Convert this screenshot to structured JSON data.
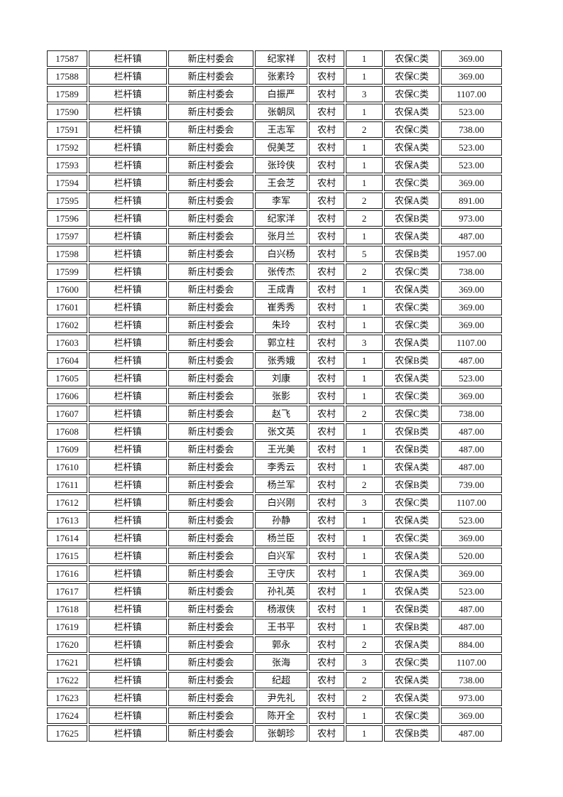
{
  "colors": {
    "background": "#ffffff",
    "text": "#121212",
    "border": "#1e1e1e"
  },
  "table": {
    "rows": [
      [
        "17587",
        "栏杆镇",
        "新庄村委会",
        "纪家祥",
        "农村",
        "1",
        "农保C类",
        "369.00"
      ],
      [
        "17588",
        "栏杆镇",
        "新庄村委会",
        "张素玲",
        "农村",
        "1",
        "农保C类",
        "369.00"
      ],
      [
        "17589",
        "栏杆镇",
        "新庄村委会",
        "白振严",
        "农村",
        "3",
        "农保C类",
        "1107.00"
      ],
      [
        "17590",
        "栏杆镇",
        "新庄村委会",
        "张朝凤",
        "农村",
        "1",
        "农保A类",
        "523.00"
      ],
      [
        "17591",
        "栏杆镇",
        "新庄村委会",
        "王志军",
        "农村",
        "2",
        "农保C类",
        "738.00"
      ],
      [
        "17592",
        "栏杆镇",
        "新庄村委会",
        "倪美芝",
        "农村",
        "1",
        "农保A类",
        "523.00"
      ],
      [
        "17593",
        "栏杆镇",
        "新庄村委会",
        "张玲侠",
        "农村",
        "1",
        "农保A类",
        "523.00"
      ],
      [
        "17594",
        "栏杆镇",
        "新庄村委会",
        "王会芝",
        "农村",
        "1",
        "农保C类",
        "369.00"
      ],
      [
        "17595",
        "栏杆镇",
        "新庄村委会",
        "李军",
        "农村",
        "2",
        "农保A类",
        "891.00"
      ],
      [
        "17596",
        "栏杆镇",
        "新庄村委会",
        "纪家洋",
        "农村",
        "2",
        "农保B类",
        "973.00"
      ],
      [
        "17597",
        "栏杆镇",
        "新庄村委会",
        "张月兰",
        "农村",
        "1",
        "农保A类",
        "487.00"
      ],
      [
        "17598",
        "栏杆镇",
        "新庄村委会",
        "白兴杨",
        "农村",
        "5",
        "农保B类",
        "1957.00"
      ],
      [
        "17599",
        "栏杆镇",
        "新庄村委会",
        "张传杰",
        "农村",
        "2",
        "农保C类",
        "738.00"
      ],
      [
        "17600",
        "栏杆镇",
        "新庄村委会",
        "王成青",
        "农村",
        "1",
        "农保A类",
        "369.00"
      ],
      [
        "17601",
        "栏杆镇",
        "新庄村委会",
        "崔秀秀",
        "农村",
        "1",
        "农保C类",
        "369.00"
      ],
      [
        "17602",
        "栏杆镇",
        "新庄村委会",
        "朱玲",
        "农村",
        "1",
        "农保C类",
        "369.00"
      ],
      [
        "17603",
        "栏杆镇",
        "新庄村委会",
        "郭立柱",
        "农村",
        "3",
        "农保A类",
        "1107.00"
      ],
      [
        "17604",
        "栏杆镇",
        "新庄村委会",
        "张秀娥",
        "农村",
        "1",
        "农保B类",
        "487.00"
      ],
      [
        "17605",
        "栏杆镇",
        "新庄村委会",
        "刘康",
        "农村",
        "1",
        "农保A类",
        "523.00"
      ],
      [
        "17606",
        "栏杆镇",
        "新庄村委会",
        "张影",
        "农村",
        "1",
        "农保C类",
        "369.00"
      ],
      [
        "17607",
        "栏杆镇",
        "新庄村委会",
        "赵飞",
        "农村",
        "2",
        "农保C类",
        "738.00"
      ],
      [
        "17608",
        "栏杆镇",
        "新庄村委会",
        "张文英",
        "农村",
        "1",
        "农保B类",
        "487.00"
      ],
      [
        "17609",
        "栏杆镇",
        "新庄村委会",
        "王光美",
        "农村",
        "1",
        "农保B类",
        "487.00"
      ],
      [
        "17610",
        "栏杆镇",
        "新庄村委会",
        "李秀云",
        "农村",
        "1",
        "农保A类",
        "487.00"
      ],
      [
        "17611",
        "栏杆镇",
        "新庄村委会",
        "杨兰军",
        "农村",
        "2",
        "农保B类",
        "739.00"
      ],
      [
        "17612",
        "栏杆镇",
        "新庄村委会",
        "白兴刚",
        "农村",
        "3",
        "农保C类",
        "1107.00"
      ],
      [
        "17613",
        "栏杆镇",
        "新庄村委会",
        "孙静",
        "农村",
        "1",
        "农保A类",
        "523.00"
      ],
      [
        "17614",
        "栏杆镇",
        "新庄村委会",
        "杨兰臣",
        "农村",
        "1",
        "农保C类",
        "369.00"
      ],
      [
        "17615",
        "栏杆镇",
        "新庄村委会",
        "白兴军",
        "农村",
        "1",
        "农保A类",
        "520.00"
      ],
      [
        "17616",
        "栏杆镇",
        "新庄村委会",
        "王守庆",
        "农村",
        "1",
        "农保A类",
        "369.00"
      ],
      [
        "17617",
        "栏杆镇",
        "新庄村委会",
        "孙礼英",
        "农村",
        "1",
        "农保A类",
        "523.00"
      ],
      [
        "17618",
        "栏杆镇",
        "新庄村委会",
        "杨淑侠",
        "农村",
        "1",
        "农保B类",
        "487.00"
      ],
      [
        "17619",
        "栏杆镇",
        "新庄村委会",
        "王书平",
        "农村",
        "1",
        "农保B类",
        "487.00"
      ],
      [
        "17620",
        "栏杆镇",
        "新庄村委会",
        "郭永",
        "农村",
        "2",
        "农保A类",
        "884.00"
      ],
      [
        "17621",
        "栏杆镇",
        "新庄村委会",
        "张海",
        "农村",
        "3",
        "农保C类",
        "1107.00"
      ],
      [
        "17622",
        "栏杆镇",
        "新庄村委会",
        "纪超",
        "农村",
        "2",
        "农保A类",
        "738.00"
      ],
      [
        "17623",
        "栏杆镇",
        "新庄村委会",
        "尹先礼",
        "农村",
        "2",
        "农保A类",
        "973.00"
      ],
      [
        "17624",
        "栏杆镇",
        "新庄村委会",
        "陈开全",
        "农村",
        "1",
        "农保C类",
        "369.00"
      ],
      [
        "17625",
        "栏杆镇",
        "新庄村委会",
        "张朝珍",
        "农村",
        "1",
        "农保B类",
        "487.00"
      ]
    ]
  }
}
